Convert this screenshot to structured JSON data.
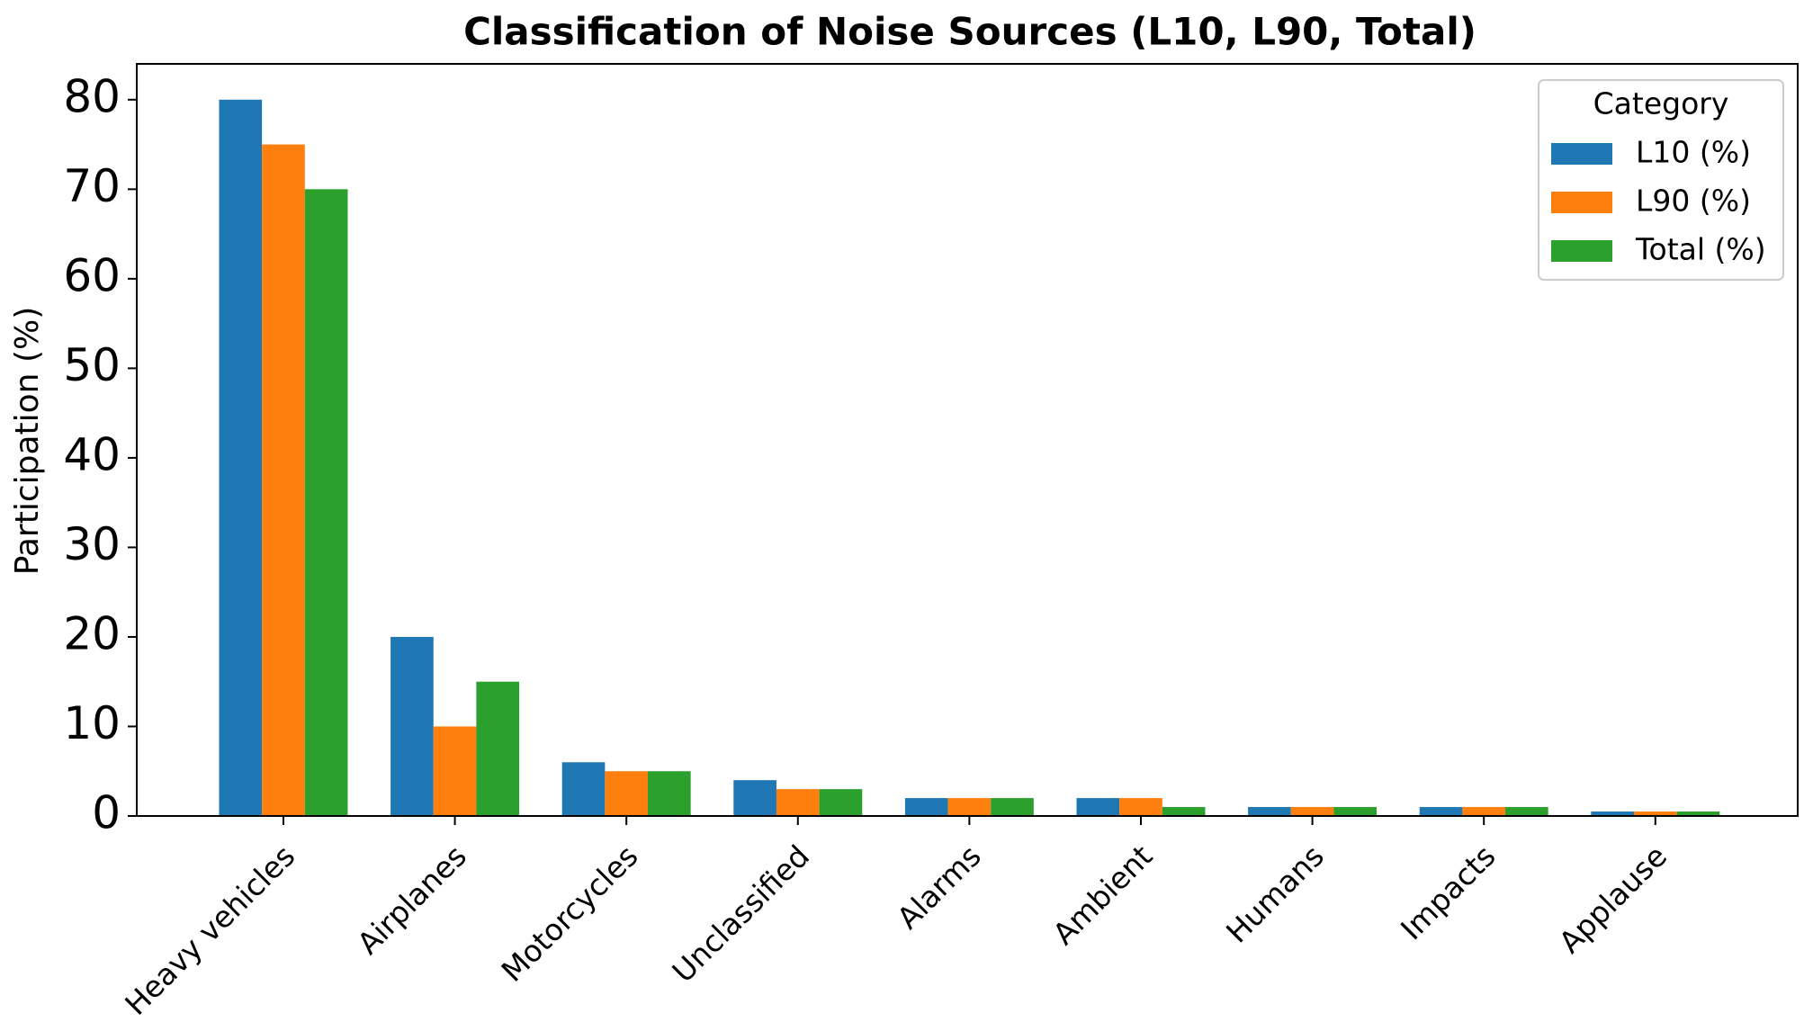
{
  "chart_data": {
    "type": "bar",
    "title": "Classification of Noise Sources (L10, L90, Total)",
    "y_label": "Participation (%)",
    "categories": [
      "Heavy vehicles",
      "Airplanes",
      "Motorcycles",
      "Unclassified",
      "Alarms",
      "Ambient",
      "Humans",
      "Impacts",
      "Applause"
    ],
    "series": [
      {
        "name": "L10 (%)",
        "color": "#1f77b4",
        "values": [
          80,
          20,
          6,
          4,
          2,
          2,
          1,
          1,
          0.5
        ]
      },
      {
        "name": "L90 (%)",
        "color": "#ff7f0e",
        "values": [
          75,
          10,
          5,
          3,
          2,
          2,
          1,
          1,
          0.5
        ]
      },
      {
        "name": "Total (%)",
        "color": "#2ca02c",
        "values": [
          70,
          15,
          5,
          3,
          2,
          1,
          1,
          1,
          0.5
        ]
      }
    ],
    "legend_title": "Category",
    "legend_position": "upper right",
    "ylim": [
      0,
      84
    ],
    "yticks": [
      0,
      10,
      20,
      30,
      40,
      50,
      60,
      70,
      80
    ]
  }
}
